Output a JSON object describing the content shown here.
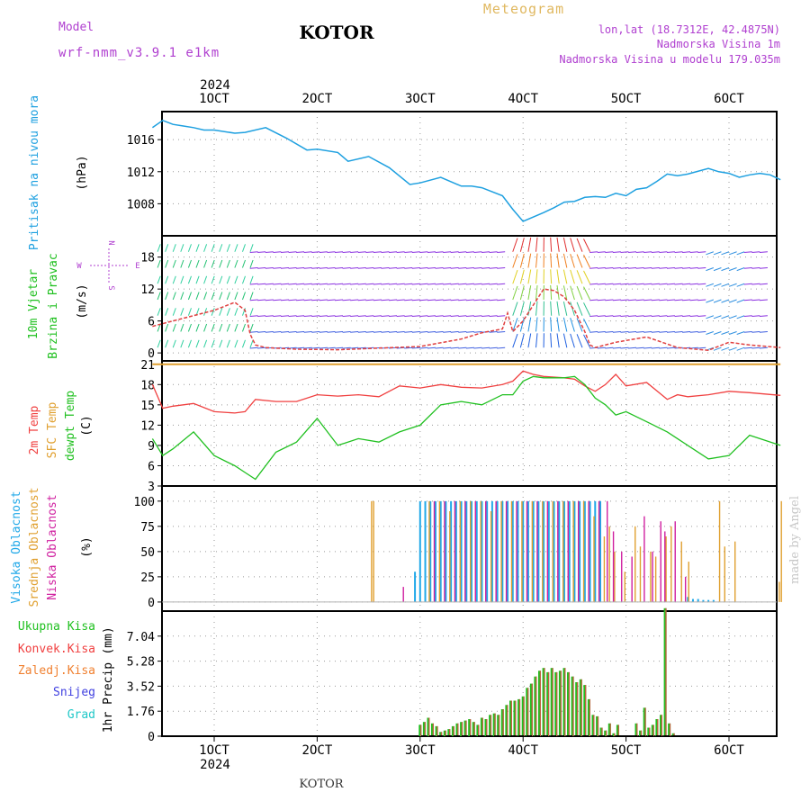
{
  "header": {
    "model_label": "Model",
    "model_name": "wrf-nmm_v3.9.1  e1km",
    "station": "KOTOR",
    "meteogram": "Meteogram",
    "lonlat": "lon,lat (18.7312E, 42.4875N)",
    "elevation": "Nadmorska Visina 1m",
    "model_elevation": "Nadmorska Visina u modelu 179.035m",
    "footer_station": "KOTOR",
    "credit": "made by Angel",
    "year": "2024"
  },
  "colors": {
    "pressure": "#1ea0e0",
    "wind_label": "#20c020",
    "wind_speed": "#e04040",
    "temp2m": "#f04040",
    "sfc": "#e0a030",
    "dewpt": "#20c020",
    "high": "#20a8e8",
    "mid": "#e0a030",
    "low": "#d020a0",
    "purple": "#b040d0"
  },
  "x_ticks": [
    "1OCT",
    "2OCT",
    "3OCT",
    "4OCT",
    "5OCT",
    "6OCT"
  ],
  "compass": {
    "n": "N",
    "s": "S",
    "e": "E",
    "w": "W"
  },
  "chart_data": [
    {
      "type": "line",
      "panel": "pressure",
      "ylabel": "Pritisak na nivou mora",
      "unit": "(hPa)",
      "yticks": [
        "1016",
        "1012",
        "1008"
      ],
      "ylim": [
        1004,
        1019.5
      ],
      "x": [
        0.4,
        0.5,
        0.6,
        0.7,
        0.8,
        0.9,
        1.0,
        1.2,
        1.3,
        1.5,
        1.7,
        1.9,
        2.0,
        2.2,
        2.3,
        2.5,
        2.7,
        2.9,
        3.0,
        3.2,
        3.4,
        3.5,
        3.6,
        3.8,
        3.9,
        4.0,
        4.2,
        4.3,
        4.4,
        4.5,
        4.6,
        4.7,
        4.8,
        4.9,
        5.0,
        5.1,
        5.2,
        5.3,
        5.4,
        5.5,
        5.6,
        5.8,
        5.9,
        6.0,
        6.1,
        6.2,
        6.3,
        6.4,
        6.5
      ],
      "values": [
        1017.5,
        1018.4,
        1017.9,
        1017.7,
        1017.5,
        1017.2,
        1017.2,
        1016.8,
        1016.9,
        1017.5,
        1016.2,
        1014.7,
        1014.8,
        1014.4,
        1013.3,
        1013.9,
        1012.5,
        1010.4,
        1010.6,
        1011.3,
        1010.2,
        1010.2,
        1010.0,
        1009.0,
        1007.3,
        1005.8,
        1006.9,
        1007.5,
        1008.2,
        1008.3,
        1008.8,
        1008.9,
        1008.8,
        1009.3,
        1009.0,
        1009.8,
        1010.0,
        1010.8,
        1011.7,
        1011.5,
        1011.7,
        1012.4,
        1012.0,
        1011.8,
        1011.3,
        1011.6,
        1011.8,
        1011.6,
        1011.0
      ]
    },
    {
      "type": "line",
      "panel": "wind",
      "ylabel": "10m Vjetar",
      "ylabel2": "Brzina i Pravac",
      "unit": "(m/s)",
      "yticks": [
        "18",
        "12",
        "6",
        "0"
      ],
      "ylim": [
        -1.5,
        22
      ],
      "x": [
        0.4,
        0.6,
        0.8,
        1.0,
        1.2,
        1.3,
        1.35,
        1.4,
        1.5,
        1.8,
        2.2,
        2.6,
        3.0,
        3.4,
        3.6,
        3.8,
        3.85,
        3.9,
        4.0,
        4.1,
        4.2,
        4.3,
        4.4,
        4.5,
        4.6,
        4.65,
        4.7,
        4.9,
        5.2,
        5.5,
        5.8,
        6.0,
        6.2,
        6.5
      ],
      "values": [
        5,
        6,
        7,
        8,
        9.5,
        8,
        3.5,
        1.5,
        1,
        0.7,
        0.6,
        0.9,
        1.2,
        2.6,
        3.8,
        4.5,
        7.5,
        4,
        6,
        9,
        12,
        11.7,
        10.5,
        8,
        4,
        1.5,
        1,
        2,
        3,
        1,
        0.5,
        2,
        1.5,
        1
      ]
    },
    {
      "type": "line",
      "panel": "temperature",
      "ylabel": "2m Temp",
      "ylabel2": "SFC Temp",
      "ylabel3": "dewpt Temp",
      "unit": "(C)",
      "yticks": [
        "21",
        "18",
        "15",
        "12",
        "9",
        "6",
        "3"
      ],
      "ylim": [
        3,
        21.5
      ],
      "x": [
        0.4,
        0.5,
        0.6,
        0.8,
        1.0,
        1.2,
        1.3,
        1.4,
        1.6,
        1.8,
        2.0,
        2.2,
        2.4,
        2.6,
        2.8,
        3.0,
        3.2,
        3.4,
        3.6,
        3.8,
        3.9,
        4.0,
        4.1,
        4.2,
        4.4,
        4.5,
        4.6,
        4.7,
        4.8,
        4.9,
        5.0,
        5.2,
        5.4,
        5.5,
        5.6,
        5.8,
        6.0,
        6.2,
        6.5
      ],
      "series": [
        {
          "name": "2m Temp",
          "values": [
            18,
            14.5,
            14.8,
            15.2,
            14,
            13.8,
            14,
            15.8,
            15.5,
            15.5,
            16.5,
            16.3,
            16.5,
            16.2,
            17.8,
            17.5,
            18,
            17.6,
            17.5,
            18,
            18.5,
            20,
            19.5,
            19.2,
            19,
            18.8,
            17.8,
            17,
            18,
            19.5,
            17.8,
            18.3,
            15.8,
            16.5,
            16.2,
            16.5,
            17,
            16.8,
            16.4
          ]
        },
        {
          "name": "SFC Temp",
          "values": [
            21,
            21,
            21,
            21,
            21,
            21,
            21,
            21,
            21,
            21,
            21,
            21,
            21,
            21,
            21,
            21,
            21,
            21,
            21,
            21,
            21,
            21,
            21,
            21,
            21,
            21,
            21,
            21,
            21,
            21,
            21,
            21,
            21,
            21,
            21,
            21,
            21,
            21,
            21
          ]
        },
        {
          "name": "dewpt Temp",
          "values": [
            10,
            7.5,
            8.5,
            11,
            7.5,
            6,
            5,
            4,
            8,
            9.5,
            13,
            9,
            10,
            9.5,
            11,
            12,
            15,
            15.5,
            15,
            16.5,
            16.5,
            18.5,
            19.2,
            19,
            19,
            19.2,
            18,
            16,
            15,
            13.5,
            14,
            12.5,
            11,
            10,
            9,
            7,
            7.5,
            10.5,
            9
          ]
        }
      ]
    },
    {
      "type": "bar",
      "panel": "clouds",
      "ylabel": "Visoka Oblacnost",
      "ylabel2": "Srednja Oblacnost",
      "ylabel3": "Niska Oblacnost",
      "unit": "(%)",
      "yticks": [
        "100",
        "75",
        "50",
        "25",
        "0"
      ],
      "ylim": [
        0,
        100
      ],
      "series": [
        {
          "name": "Visoka Oblacnost",
          "x": [
            2.95,
            3.0,
            3.05,
            3.1,
            3.15,
            3.2,
            3.25,
            3.3,
            3.35,
            3.4,
            3.45,
            3.5,
            3.55,
            3.6,
            3.65,
            3.7,
            3.75,
            3.8,
            3.85,
            3.9,
            3.95,
            4.0,
            4.05,
            4.1,
            4.15,
            4.2,
            4.25,
            4.3,
            4.35,
            4.4,
            4.45,
            4.5,
            4.55,
            4.6,
            4.65,
            4.7,
            4.75,
            5.6,
            5.65,
            5.7,
            5.75,
            5.8,
            5.85
          ],
          "values": [
            30,
            100,
            100,
            100,
            100,
            100,
            100,
            100,
            100,
            100,
            100,
            100,
            100,
            100,
            100,
            100,
            100,
            100,
            100,
            100,
            100,
            100,
            100,
            100,
            100,
            100,
            100,
            100,
            100,
            100,
            100,
            100,
            100,
            100,
            100,
            100,
            100,
            5,
            3,
            3,
            2,
            2,
            2
          ]
        },
        {
          "name": "Srednja Oblacnost",
          "x": [
            2.52,
            2.54,
            3.08,
            3.18,
            3.28,
            3.38,
            3.48,
            3.58,
            3.68,
            3.78,
            3.88,
            3.98,
            4.08,
            4.18,
            4.28,
            4.38,
            4.48,
            4.58,
            4.68,
            4.78,
            4.83,
            4.88,
            4.98,
            5.08,
            5.13,
            5.23,
            5.28,
            5.38,
            5.43,
            5.53,
            5.6,
            5.9,
            5.95,
            6.05,
            6.48,
            6.5
          ],
          "values": [
            100,
            100,
            100,
            100,
            90,
            100,
            100,
            100,
            90,
            100,
            100,
            100,
            100,
            100,
            100,
            100,
            100,
            100,
            85,
            65,
            75,
            50,
            30,
            75,
            55,
            50,
            45,
            65,
            75,
            60,
            40,
            100,
            55,
            60,
            20,
            100
          ]
        },
        {
          "name": "Niska Oblacnost",
          "x": [
            2.82,
            3.12,
            3.22,
            3.32,
            3.42,
            3.52,
            3.62,
            3.72,
            3.82,
            3.92,
            4.02,
            4.12,
            4.22,
            4.32,
            4.42,
            4.52,
            4.62,
            4.72,
            4.8,
            4.86,
            4.94,
            5.04,
            5.16,
            5.24,
            5.32,
            5.36,
            5.46,
            5.56
          ],
          "values": [
            15,
            100,
            100,
            100,
            100,
            100,
            100,
            100,
            100,
            100,
            100,
            100,
            100,
            100,
            100,
            100,
            100,
            100,
            100,
            70,
            50,
            45,
            85,
            50,
            80,
            70,
            80,
            25
          ]
        }
      ]
    },
    {
      "type": "bar",
      "panel": "precipitation",
      "ylabel": "1hr Precip",
      "unit": "(mm)",
      "legend": [
        "Ukupna  Kisa",
        "Konvek.Kisa",
        "Zaledj.Kisa",
        "Snijeg",
        "Grad"
      ],
      "yticks": [
        "7.04",
        "5.28",
        "3.52",
        "1.76",
        "0"
      ],
      "ylim": [
        0,
        8.8
      ],
      "x": [
        3.0,
        3.04,
        3.08,
        3.12,
        3.16,
        3.2,
        3.24,
        3.28,
        3.32,
        3.36,
        3.4,
        3.44,
        3.48,
        3.52,
        3.56,
        3.6,
        3.64,
        3.68,
        3.72,
        3.76,
        3.8,
        3.84,
        3.88,
        3.92,
        3.96,
        4.0,
        4.04,
        4.08,
        4.12,
        4.16,
        4.2,
        4.24,
        4.28,
        4.32,
        4.36,
        4.4,
        4.44,
        4.48,
        4.52,
        4.56,
        4.6,
        4.64,
        4.68,
        4.72,
        4.76,
        4.8,
        4.84,
        4.88,
        4.92,
        5.1,
        5.14,
        5.18,
        5.22,
        5.26,
        5.3,
        5.34,
        5.38,
        5.42,
        5.46
      ],
      "values": [
        0.8,
        1.0,
        1.3,
        0.9,
        0.7,
        0.3,
        0.4,
        0.5,
        0.7,
        0.9,
        1.0,
        1.1,
        1.2,
        1.0,
        0.8,
        1.3,
        1.2,
        1.5,
        1.6,
        1.5,
        1.9,
        2.2,
        2.5,
        2.5,
        2.6,
        2.8,
        3.4,
        3.7,
        4.2,
        4.6,
        4.8,
        4.5,
        4.8,
        4.5,
        4.6,
        4.8,
        4.5,
        4.2,
        3.8,
        4.0,
        3.6,
        2.6,
        1.5,
        1.4,
        0.6,
        0.4,
        0.9,
        0.2,
        0.8,
        0.9,
        0.4,
        2.0,
        0.6,
        0.8,
        1.2,
        1.5,
        9.0,
        0.9,
        0.2
      ]
    }
  ]
}
